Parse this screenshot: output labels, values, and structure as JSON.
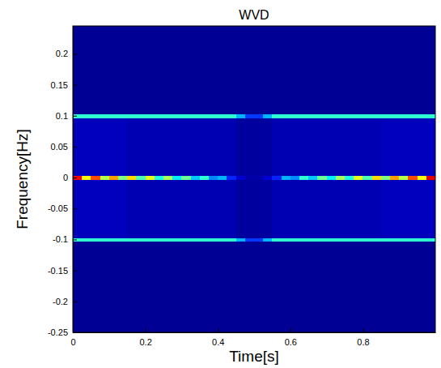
{
  "chart_data": {
    "type": "heatmap",
    "title": "WVD",
    "x_label": "Time[s]",
    "y_label": "Frequency[Hz]",
    "xlim": [
      0,
      1
    ],
    "ylim": [
      -0.25,
      0.245
    ],
    "xticks": [
      0,
      0.2,
      0.4,
      0.6,
      0.8
    ],
    "yticks": [
      -0.25,
      -0.2,
      -0.15,
      -0.1,
      -0.05,
      0,
      0.05,
      0.1,
      0.15,
      0.2
    ],
    "x_edges": [
      0,
      0.025,
      0.05,
      0.075,
      0.1,
      0.125,
      0.15,
      0.175,
      0.2,
      0.225,
      0.25,
      0.275,
      0.3,
      0.325,
      0.35,
      0.375,
      0.4,
      0.425,
      0.45,
      0.475,
      0.5,
      0.525,
      0.55,
      0.575,
      0.6,
      0.625,
      0.65,
      0.675,
      0.7,
      0.725,
      0.75,
      0.775,
      0.8,
      0.825,
      0.85,
      0.875,
      0.9,
      0.925,
      0.95,
      0.975,
      1
    ],
    "y_edges": [
      -0.25,
      -0.103,
      -0.097,
      -0.003,
      0.003,
      0.097,
      0.103,
      0.245
    ],
    "zlim": [
      0,
      1
    ],
    "cells": [
      [
        0.02,
        0.02,
        0.02,
        0.02,
        0.02,
        0.02,
        0.02,
        0.02,
        0.02,
        0.02,
        0.02,
        0.02,
        0.02,
        0.02,
        0.02,
        0.02,
        0.02,
        0.02,
        0.02,
        0.02,
        0.02,
        0.02,
        0.02,
        0.02,
        0.02,
        0.02,
        0.02,
        0.02,
        0.02,
        0.02,
        0.02,
        0.02,
        0.02,
        0.02,
        0.02,
        0.02,
        0.02,
        0.02,
        0.02,
        0.02
      ],
      [
        0.42,
        0.42,
        0.42,
        0.42,
        0.42,
        0.42,
        0.42,
        0.42,
        0.42,
        0.42,
        0.42,
        0.42,
        0.42,
        0.42,
        0.42,
        0.42,
        0.42,
        0.42,
        0.3,
        0.18,
        0.18,
        0.3,
        0.42,
        0.42,
        0.42,
        0.42,
        0.42,
        0.42,
        0.42,
        0.42,
        0.42,
        0.42,
        0.42,
        0.42,
        0.42,
        0.42,
        0.42,
        0.42,
        0.42,
        0.42
      ],
      [
        0.06,
        0.06,
        0.06,
        0.06,
        0.06,
        0.06,
        0.05,
        0.05,
        0.05,
        0.05,
        0.05,
        0.05,
        0.05,
        0.05,
        0.05,
        0.05,
        0.05,
        0.05,
        0.03,
        0.03,
        0.03,
        0.03,
        0.05,
        0.05,
        0.05,
        0.05,
        0.05,
        0.05,
        0.05,
        0.05,
        0.05,
        0.05,
        0.05,
        0.05,
        0.06,
        0.06,
        0.06,
        0.06,
        0.06,
        0.06
      ],
      [
        0.88,
        0.62,
        0.8,
        0.55,
        0.72,
        0.5,
        0.66,
        0.45,
        0.6,
        0.4,
        0.54,
        0.36,
        0.48,
        0.32,
        0.42,
        0.26,
        0.3,
        0.16,
        0.08,
        0.04,
        0.04,
        0.08,
        0.16,
        0.3,
        0.26,
        0.42,
        0.32,
        0.48,
        0.36,
        0.54,
        0.4,
        0.6,
        0.45,
        0.66,
        0.5,
        0.72,
        0.55,
        0.8,
        0.62,
        0.9
      ],
      [
        0.06,
        0.06,
        0.06,
        0.06,
        0.06,
        0.06,
        0.05,
        0.05,
        0.05,
        0.05,
        0.05,
        0.05,
        0.05,
        0.05,
        0.05,
        0.05,
        0.05,
        0.05,
        0.03,
        0.03,
        0.03,
        0.03,
        0.05,
        0.05,
        0.05,
        0.05,
        0.05,
        0.05,
        0.05,
        0.05,
        0.05,
        0.05,
        0.05,
        0.05,
        0.06,
        0.06,
        0.06,
        0.06,
        0.06,
        0.06
      ],
      [
        0.42,
        0.42,
        0.42,
        0.42,
        0.42,
        0.42,
        0.42,
        0.42,
        0.42,
        0.42,
        0.42,
        0.42,
        0.42,
        0.42,
        0.42,
        0.42,
        0.42,
        0.42,
        0.3,
        0.18,
        0.18,
        0.3,
        0.42,
        0.42,
        0.42,
        0.42,
        0.42,
        0.42,
        0.42,
        0.42,
        0.42,
        0.42,
        0.42,
        0.42,
        0.42,
        0.42,
        0.42,
        0.42,
        0.42,
        0.42
      ],
      [
        0.02,
        0.02,
        0.02,
        0.02,
        0.02,
        0.02,
        0.02,
        0.02,
        0.02,
        0.02,
        0.02,
        0.02,
        0.02,
        0.02,
        0.02,
        0.02,
        0.02,
        0.02,
        0.02,
        0.02,
        0.02,
        0.02,
        0.02,
        0.02,
        0.02,
        0.02,
        0.02,
        0.02,
        0.02,
        0.02,
        0.02,
        0.02,
        0.02,
        0.02,
        0.02,
        0.02,
        0.02,
        0.02,
        0.02,
        0.02
      ]
    ]
  }
}
